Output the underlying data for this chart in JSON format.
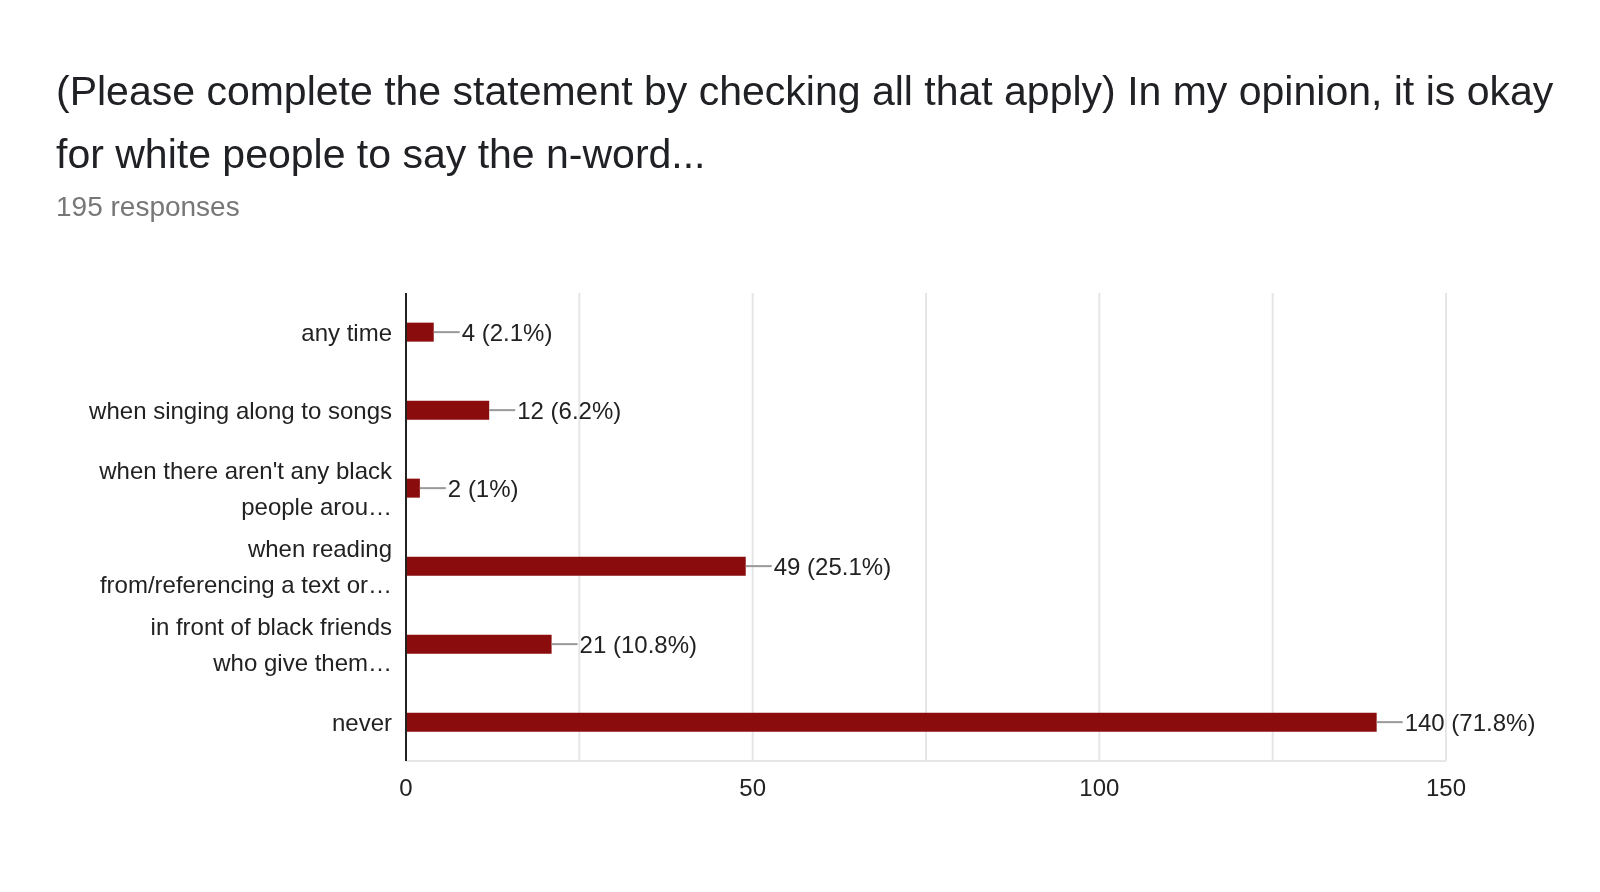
{
  "chart_data": {
    "type": "bar",
    "orientation": "horizontal",
    "title": "(Please complete the statement by checking all that apply) In my opinion, it is okay for white people to say the n-word...",
    "subtitle": "195 responses",
    "categories": [
      "any time",
      "when singing along to songs",
      "when there aren't any black people arou…",
      "when reading from/referencing a text or…",
      "in front of black friends who give them…",
      "never"
    ],
    "values": [
      4,
      12,
      2,
      49,
      21,
      140
    ],
    "value_labels": [
      "4 (2.1%)",
      "12 (6.2%)",
      "2 (1%)",
      "49 (25.1%)",
      "21 (10.8%)",
      "140 (71.8%)"
    ],
    "color": "#8b0c0c",
    "xlim": [
      0,
      150
    ],
    "xticks": [
      0,
      {
        "value": 25,
        "label": null
      },
      50,
      {
        "value": 75,
        "label": null
      },
      100,
      {
        "value": 125,
        "label": null
      },
      150
    ],
    "grid": "x"
  }
}
